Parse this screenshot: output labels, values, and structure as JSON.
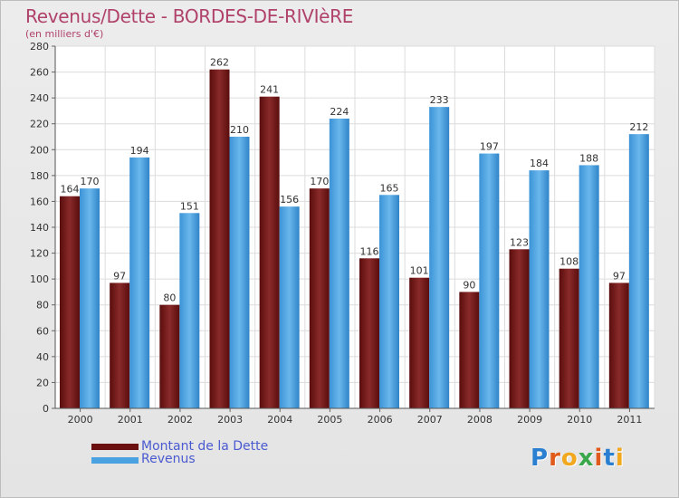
{
  "title": "Revenus/Dette - BORDES-DE-RIVIèRE",
  "subtitle": "(en milliers d'€)",
  "logo": "Proxiti",
  "chart_data": {
    "type": "bar",
    "categories": [
      "2000",
      "2001",
      "2002",
      "2003",
      "2004",
      "2005",
      "2006",
      "2007",
      "2008",
      "2009",
      "2010",
      "2011"
    ],
    "series": [
      {
        "name": "Montant de la Dette",
        "values": [
          164,
          97,
          80,
          262,
          241,
          170,
          116,
          101,
          90,
          123,
          108,
          97
        ],
        "color": "#7a1a1a"
      },
      {
        "name": "Revenus",
        "values": [
          170,
          194,
          151,
          210,
          156,
          224,
          165,
          233,
          197,
          184,
          188,
          212
        ],
        "color": "#4aa3e0"
      }
    ],
    "yticks": [
      0,
      20,
      40,
      60,
      80,
      100,
      120,
      140,
      160,
      180,
      200,
      220,
      240,
      260,
      280
    ],
    "ylim": [
      0,
      280
    ],
    "grid": true,
    "legend_position": "bottom-left"
  },
  "colors": {
    "title": "#b0426a",
    "legend_text": "#4a5ad0",
    "dette": "#7a1a1a",
    "revenus": "#4aa3e0"
  }
}
